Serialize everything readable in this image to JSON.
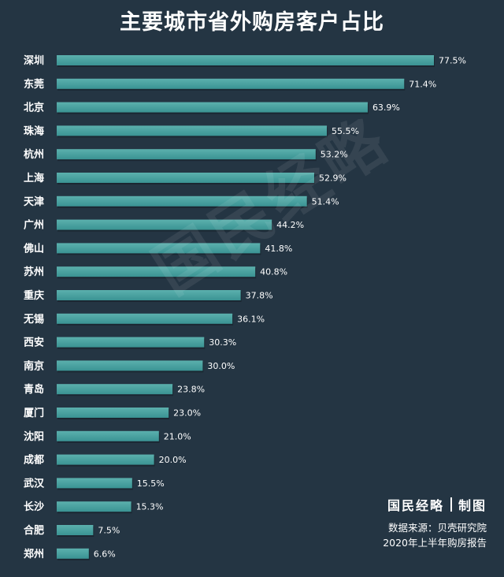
{
  "colors": {
    "background": "#243543",
    "bar": "#3a9393",
    "bar_highlight": "#5bb0ad",
    "text": "#ffffff"
  },
  "watermark": "国民经略",
  "credit": {
    "brand": "国民经略",
    "suffix": "制图",
    "source": "数据来源：贝壳研究院",
    "report": "2020年上半年购房报告"
  },
  "chart_data": {
    "type": "bar",
    "orientation": "horizontal",
    "title": "主要城市省外购房客户占比",
    "xlabel": "",
    "ylabel": "",
    "xlim": [
      0,
      80
    ],
    "grid": false,
    "value_format": "percent",
    "categories": [
      "深圳",
      "东莞",
      "北京",
      "珠海",
      "杭州",
      "上海",
      "天津",
      "广州",
      "佛山",
      "苏州",
      "重庆",
      "无锡",
      "西安",
      "南京",
      "青岛",
      "厦门",
      "沈阳",
      "成都",
      "武汉",
      "长沙",
      "合肥",
      "郑州"
    ],
    "values": [
      77.5,
      71.4,
      63.9,
      55.5,
      53.2,
      52.9,
      51.4,
      44.2,
      41.8,
      40.8,
      37.8,
      36.1,
      30.3,
      30.0,
      23.8,
      23.0,
      21.0,
      20.0,
      15.5,
      15.3,
      7.5,
      6.6
    ],
    "value_labels": [
      "77.5%",
      "71.4%",
      "63.9%",
      "55.5%",
      "53.2%",
      "52.9%",
      "51.4%",
      "44.2%",
      "41.8%",
      "40.8%",
      "37.8%",
      "36.1%",
      "30.3%",
      "30.0%",
      "23.8%",
      "23.0%",
      "21.0%",
      "20.0%",
      "15.5%",
      "15.3%",
      "7.5%",
      "6.6%"
    ]
  }
}
